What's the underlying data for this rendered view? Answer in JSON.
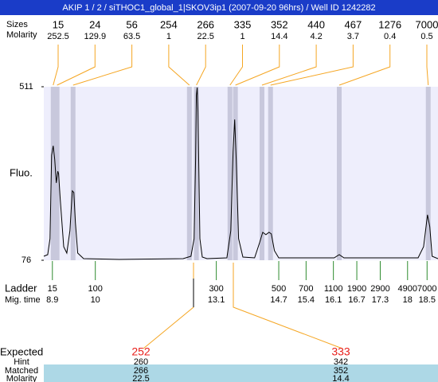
{
  "chart_data": {
    "type": "line",
    "title": "AKIP 1 / 2 / siTHOC1_global_1|SKOV3ip1 (2007-09-20 96hrs) / Well ID 1242282",
    "ylabel": "Fluo.",
    "ylim": [
      76,
      511
    ],
    "yticks": [
      76,
      511
    ],
    "xlim": [
      8.68,
      18.78
    ],
    "grid": false,
    "series": [
      {
        "color": "#000000",
        "x": [
          8.68,
          8.78,
          8.84,
          8.88,
          8.92,
          8.96,
          9.0,
          9.04,
          9.06,
          9.1,
          9.19,
          9.27,
          9.35,
          9.41,
          9.45,
          9.49,
          9.55,
          9.7,
          10.61,
          12.25,
          12.45,
          12.53,
          12.57,
          12.59,
          12.61,
          12.63,
          12.68,
          12.74,
          12.86,
          13.37,
          13.47,
          13.53,
          13.57,
          13.61,
          13.67,
          13.78,
          14.08,
          14.21,
          14.29,
          14.37,
          14.45,
          14.51,
          14.59,
          14.7,
          16.12,
          16.25,
          16.37,
          18.27,
          18.41,
          18.51,
          18.57,
          18.63,
          18.78
        ],
        "values": [
          86,
          90,
          130,
          339,
          363,
          329,
          270,
          299,
          293,
          230,
          110,
          94,
          150,
          250,
          246,
          170,
          94,
          80,
          78,
          80,
          86,
          130,
          329,
          489,
          509,
          449,
          130,
          84,
          80,
          82,
          150,
          349,
          429,
          329,
          130,
          84,
          82,
          120,
          146,
          140,
          146,
          142,
          100,
          82,
          82,
          90,
          82,
          82,
          110,
          190,
          160,
          86,
          80
        ]
      }
    ],
    "row_labels": [
      "Sizes",
      "Molarity"
    ],
    "peak_sizes": [
      15,
      24,
      56,
      254,
      266,
      335,
      352,
      440,
      467,
      1276,
      7000
    ],
    "peak_molarity": [
      252.5,
      129.9,
      63.5,
      1,
      22.5,
      1,
      14.4,
      4.2,
      3.7,
      0.4,
      0.5
    ],
    "peak_times": [
      8.92,
      9.02,
      9.43,
      12.41,
      12.59,
      13.45,
      13.59,
      14.27,
      14.49,
      16.25,
      18.53
    ],
    "peak_band_color": "#c8c8dc",
    "plot_color": "#eeeefc",
    "ladder_labels": [
      "Ladder",
      "Mig. time"
    ],
    "ladder_sizes": [
      15,
      100,
      300,
      500,
      700,
      1100,
      1900,
      2900,
      4900,
      7000
    ],
    "ladder_times": [
      8.9,
      10,
      13.1,
      14.7,
      15.4,
      16.1,
      16.7,
      17.3,
      18,
      18.5
    ],
    "expected": {
      "labels": [
        "Expected",
        "Hint",
        "Matched",
        "Molarity"
      ],
      "expected": [
        252,
        333
      ],
      "hint": [
        260,
        342
      ],
      "matched": [
        266,
        352
      ],
      "molarity": [
        22.5,
        14.4
      ]
    }
  }
}
